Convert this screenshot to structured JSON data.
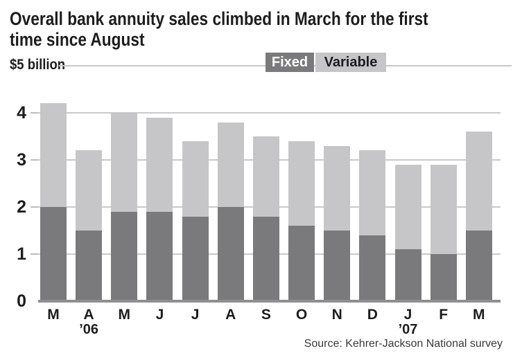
{
  "header": {
    "title_lines": [
      "Overall bank annuity sales climbed in March for the first",
      "time since August"
    ],
    "unit_label": "$5 billion"
  },
  "legend": {
    "items": [
      {
        "label": "Fixed",
        "color": "#7a7a7c",
        "text_color": "#ffffff"
      },
      {
        "label": "Variable",
        "color": "#c6c6c8",
        "text_color": "#1d1d1f"
      }
    ],
    "position": "top"
  },
  "chart_data": {
    "type": "bar",
    "stacked": true,
    "title": "Overall bank annuity sales climbed in March for the first time since August",
    "ylabel": "$5 billion",
    "categories": [
      "M",
      "A",
      "M",
      "J",
      "J",
      "A",
      "S",
      "O",
      "N",
      "D",
      "J",
      "F",
      "M"
    ],
    "year_markers": [
      {
        "index": 1,
        "label": "’06"
      },
      {
        "index": 10,
        "label": "’07"
      }
    ],
    "series": [
      {
        "name": "Fixed",
        "color": "#7a7a7c",
        "values": [
          2.0,
          1.5,
          1.9,
          1.9,
          1.8,
          2.0,
          1.8,
          1.6,
          1.5,
          1.4,
          1.1,
          1.0,
          1.5
        ]
      },
      {
        "name": "Variable",
        "color": "#c6c6c8",
        "values": [
          2.2,
          1.7,
          2.1,
          2.0,
          1.6,
          1.8,
          1.7,
          1.8,
          1.8,
          1.8,
          1.8,
          1.9,
          2.1
        ]
      }
    ],
    "totals": [
      4.2,
      3.2,
      4.0,
      3.9,
      3.4,
      3.8,
      3.5,
      3.4,
      3.3,
      3.2,
      2.9,
      2.9,
      3.6
    ],
    "yticks": [
      0,
      1,
      2,
      3,
      4
    ],
    "ylim": [
      0,
      5
    ],
    "grid": true,
    "legend_position": "top"
  },
  "footer": {
    "source": "Source: Kehrer-Jackson National survey"
  }
}
